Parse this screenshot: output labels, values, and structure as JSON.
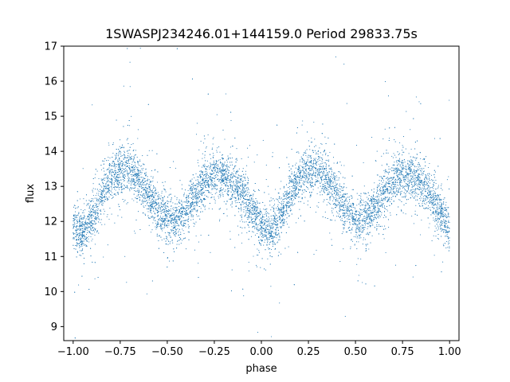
{
  "chart_data": {
    "type": "scatter",
    "title": "1SWASPJ234246.01+144159.0 Period 29833.75s",
    "xlabel": "phase",
    "ylabel": "flux",
    "xlim": [
      -1.05,
      1.05
    ],
    "ylim": [
      8.6,
      17.0
    ],
    "x_ticks": [
      -1.0,
      -0.75,
      -0.5,
      -0.25,
      0.0,
      0.25,
      0.5,
      0.75,
      1.0
    ],
    "x_tick_labels": [
      "−1.00",
      "−0.75",
      "−0.50",
      "−0.25",
      "0.00",
      "0.25",
      "0.50",
      "0.75",
      "1.00"
    ],
    "y_ticks": [
      9,
      10,
      11,
      12,
      13,
      14,
      15,
      16,
      17
    ],
    "y_tick_labels": [
      "9",
      "10",
      "11",
      "12",
      "13",
      "14",
      "15",
      "16",
      "17"
    ],
    "grid": false,
    "legend": "none",
    "point_color": "#1f77b4",
    "series": [
      {
        "name": "",
        "description_of_shape": "",
        "x": [
          -1.0,
          -0.95,
          -0.9,
          -0.85,
          -0.8,
          -0.75,
          -0.7,
          -0.65,
          -0.6,
          -0.55,
          -0.5,
          -0.45,
          -0.4,
          -0.35,
          -0.3,
          -0.25,
          -0.2,
          -0.15,
          -0.1,
          -0.05,
          0.0,
          0.05,
          0.1,
          0.15,
          0.2,
          0.25,
          0.3,
          0.35,
          0.4,
          0.45,
          0.5,
          0.55,
          0.6,
          0.65,
          0.7,
          0.75,
          0.8,
          0.85,
          0.9,
          0.95,
          1.0
        ],
        "y": [
          11.8,
          11.7,
          12.1,
          12.7,
          13.2,
          13.5,
          13.5,
          13.2,
          12.8,
          12.3,
          12.0,
          12.0,
          12.3,
          12.8,
          13.1,
          13.3,
          13.3,
          13.1,
          12.8,
          12.3,
          11.8,
          11.7,
          12.1,
          12.7,
          13.2,
          13.5,
          13.5,
          13.2,
          12.8,
          12.3,
          12.0,
          12.0,
          12.3,
          12.8,
          13.1,
          13.3,
          13.3,
          13.1,
          12.8,
          12.3,
          11.8
        ]
      }
    ]
  }
}
